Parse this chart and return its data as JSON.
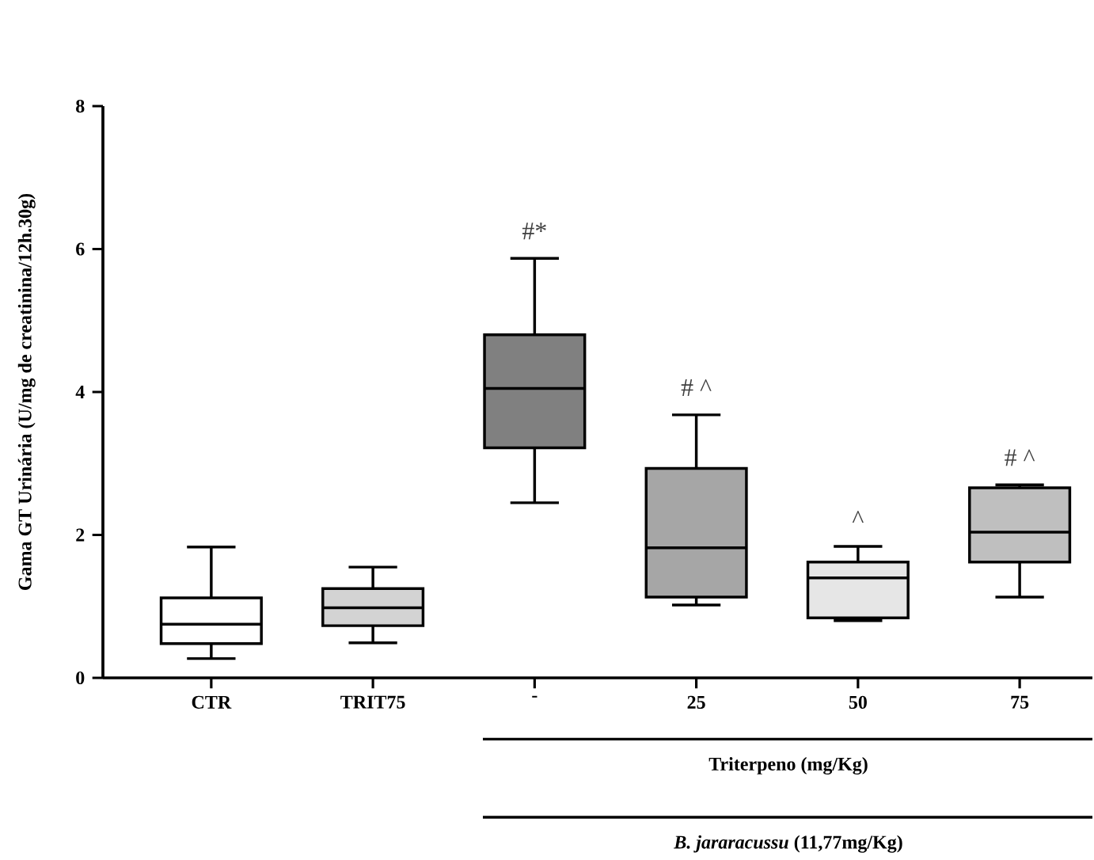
{
  "chart_data": {
    "type": "box",
    "ylabel": "Gama GT Urinária (U/mg de creatinina/12h.30g)",
    "categories": [
      "CTR",
      "TRIT75",
      "-",
      "25",
      "50",
      "75"
    ],
    "colors": [
      "#ffffff",
      "#d3d3d3",
      "#808080",
      "#a6a6a6",
      "#e6e6e6",
      "#bfbfbf"
    ],
    "boxes": [
      {
        "low": 0.27,
        "q1": 0.48,
        "median": 0.75,
        "q3": 1.12,
        "high": 1.83
      },
      {
        "low": 0.49,
        "q1": 0.73,
        "median": 0.98,
        "q3": 1.25,
        "high": 1.55
      },
      {
        "low": 2.45,
        "q1": 3.22,
        "median": 4.05,
        "q3": 4.8,
        "high": 5.87
      },
      {
        "low": 1.02,
        "q1": 1.13,
        "median": 1.82,
        "q3": 2.93,
        "high": 3.68
      },
      {
        "low": 0.8,
        "q1": 0.84,
        "median": 1.4,
        "q3": 1.62,
        "high": 1.84
      },
      {
        "low": 1.13,
        "q1": 1.62,
        "median": 2.04,
        "q3": 2.66,
        "high": 2.7
      }
    ],
    "ylim": [
      0,
      8
    ],
    "yticks": [
      0,
      2,
      4,
      6,
      8
    ],
    "grid": false,
    "annotations": [
      {
        "text": "#*",
        "x": "-",
        "y": 5.87
      },
      {
        "text": "# ^",
        "x": "25",
        "y": 3.68
      },
      {
        "text": "^",
        "x": "50",
        "y": 1.84
      },
      {
        "text": "# ^",
        "x": "75",
        "y": 2.7
      },
      "Triterpeno (mg/Kg)",
      "*B. jararacussu* (11,77mg/Kg)"
    ]
  }
}
